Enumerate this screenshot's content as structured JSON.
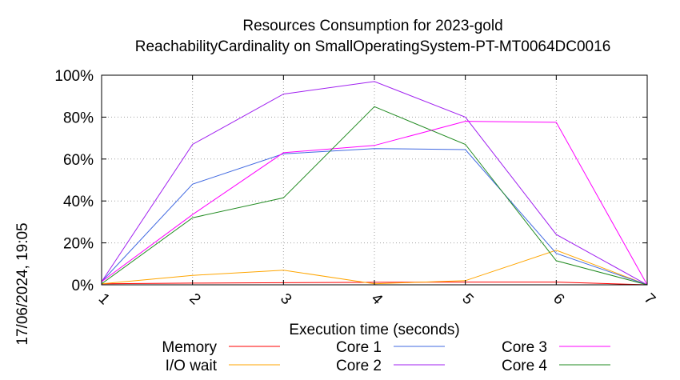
{
  "chart_data": {
    "type": "line",
    "title": "Resources Consumption for 2023-gold",
    "subtitle": "ReachabilityCardinality on SmallOperatingSystem-PT-MT0064DC0016",
    "xlabel": "Execution time (seconds)",
    "ylabel": "",
    "x": [
      1,
      2,
      3,
      4,
      5,
      6,
      7
    ],
    "xlim": [
      1,
      7
    ],
    "ylim": [
      0,
      100
    ],
    "x_ticks": [
      "1",
      "2",
      "3",
      "4",
      "5",
      "6",
      "7"
    ],
    "y_ticks": [
      "0%",
      "20%",
      "40%",
      "60%",
      "80%",
      "100%"
    ],
    "grid": true,
    "legend_position": "bottom",
    "series": [
      {
        "name": "Memory",
        "color": "#ff0000",
        "values": [
          0.5,
          0.8,
          1.0,
          1.2,
          1.3,
          1.3,
          0
        ]
      },
      {
        "name": "I/O wait",
        "color": "#ffa500",
        "values": [
          0.5,
          4.5,
          7.0,
          0.5,
          2.0,
          16.5,
          0
        ]
      },
      {
        "name": "Core 1",
        "color": "#4169e1",
        "values": [
          1.5,
          48.0,
          62.5,
          65.0,
          64.5,
          15.0,
          0
        ]
      },
      {
        "name": "Core 2",
        "color": "#a020f0",
        "values": [
          1.5,
          67.0,
          91.0,
          97.0,
          80.0,
          24.0,
          0
        ]
      },
      {
        "name": "Core 3",
        "color": "#ff00ff",
        "values": [
          1.5,
          33.5,
          63.0,
          66.5,
          78.0,
          77.5,
          0
        ]
      },
      {
        "name": "Core 4",
        "color": "#228b22",
        "values": [
          0.5,
          32.0,
          41.5,
          85.0,
          67.0,
          11.5,
          0
        ]
      }
    ]
  },
  "timestamp": "17/06/2024, 19:05"
}
